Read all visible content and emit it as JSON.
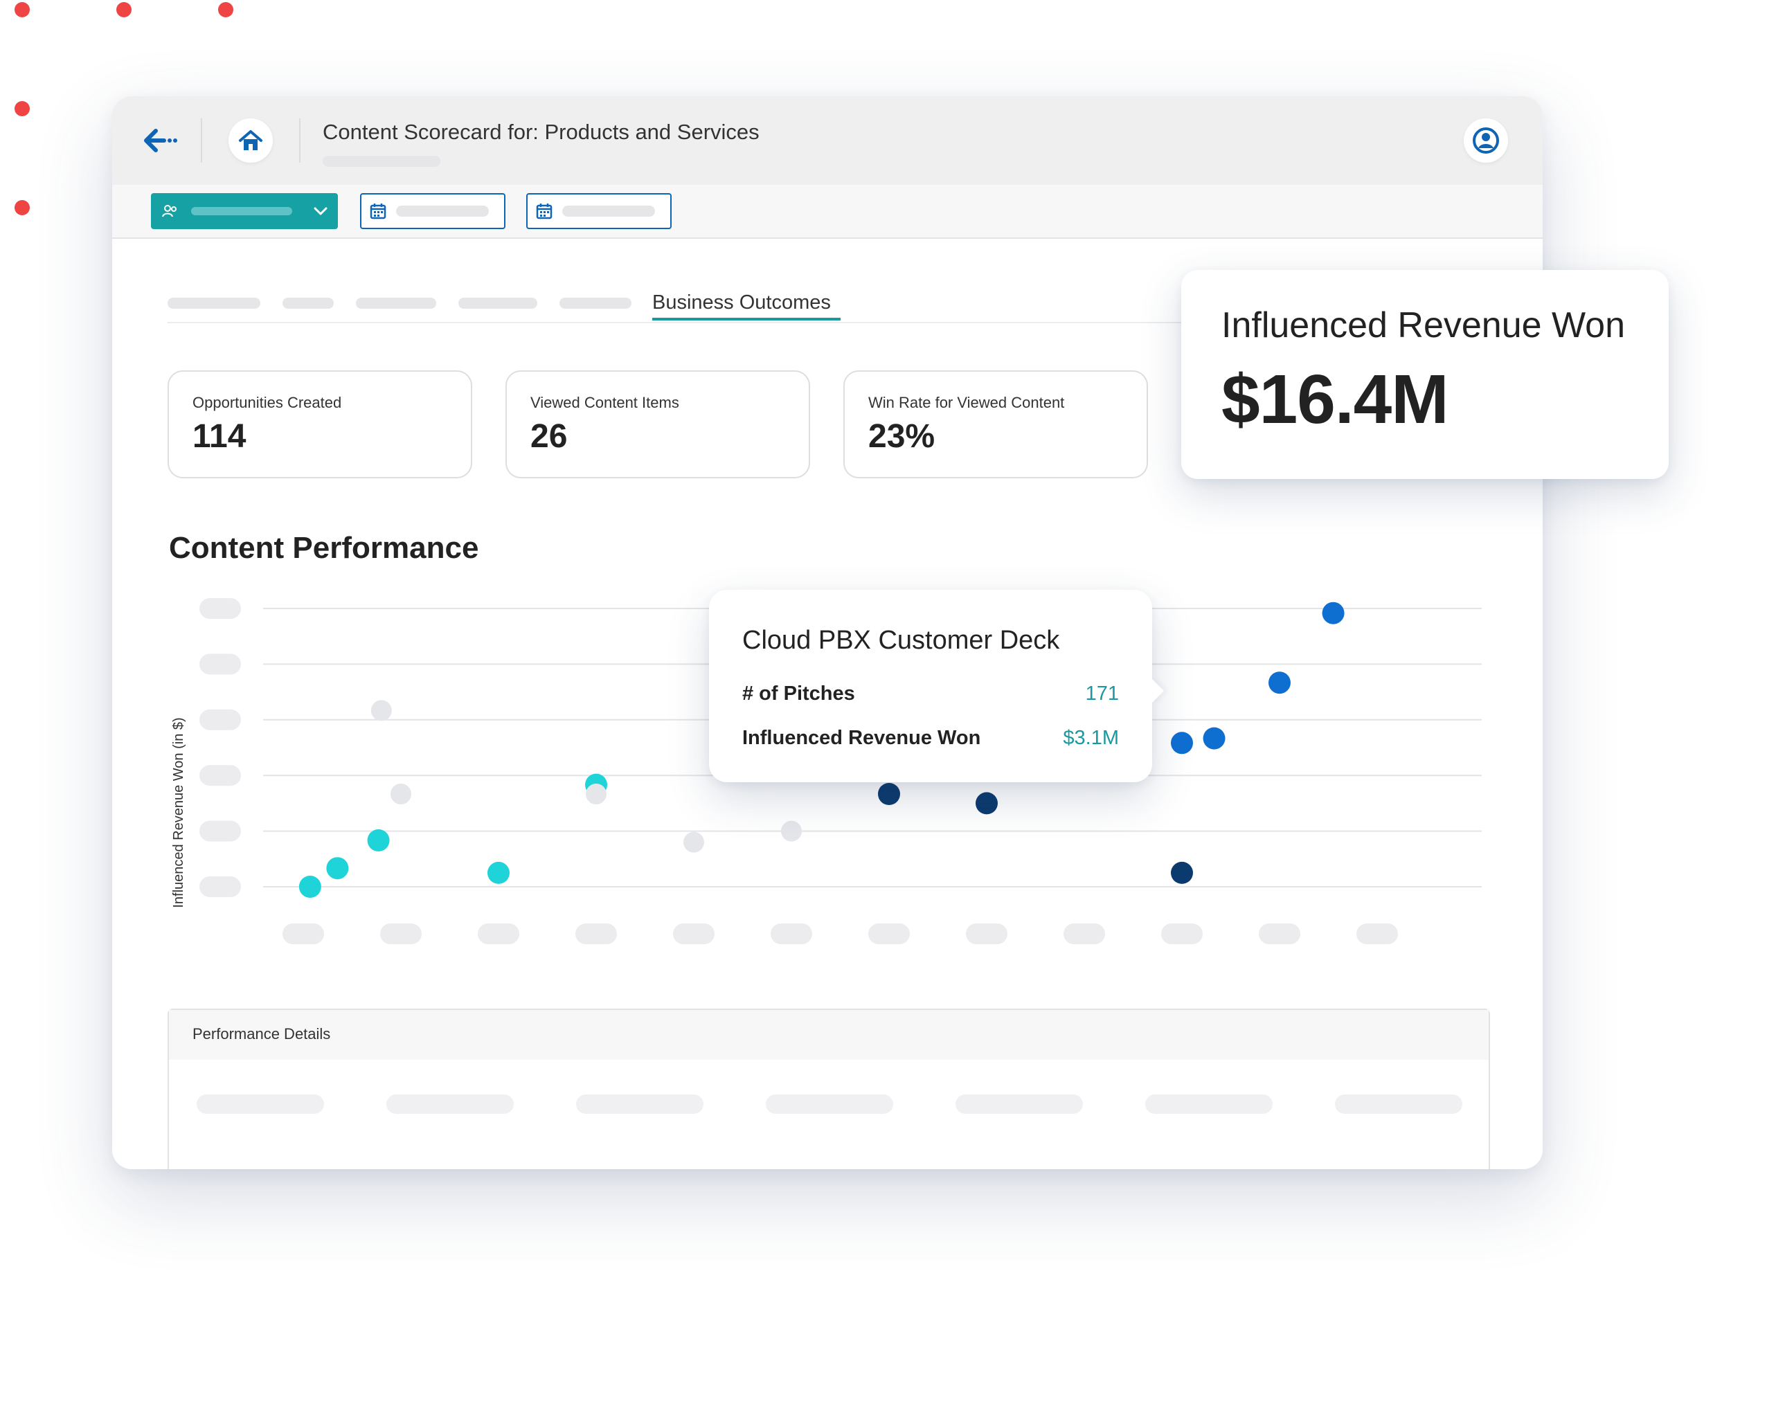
{
  "header": {
    "title": "Content Scorecard for: Products and Services",
    "back_icon": "arrow-left-icon",
    "home_icon": "home-icon",
    "user_icon": "user-icon"
  },
  "tabs": {
    "active_label": "Business Outcomes"
  },
  "kpis": [
    {
      "label": "Opportunities Created",
      "value": "114"
    },
    {
      "label": "Viewed Content Items",
      "value": "26"
    },
    {
      "label": "Win Rate for Viewed Content",
      "value": "23%"
    }
  ],
  "highlight_card": {
    "title": "Influenced Revenue Won",
    "value": "$16.4M"
  },
  "section": {
    "title": "Content Performance"
  },
  "tooltip": {
    "title": "Cloud PBX Customer Deck",
    "rows": [
      {
        "label": "# of Pitches",
        "value": "171"
      },
      {
        "label": "Influenced Revenue Won",
        "value": "$3.1M"
      }
    ]
  },
  "details": {
    "title": "Performance Details"
  },
  "colors": {
    "teal": "#1fd4d8",
    "blue": "#0f6fd1",
    "navy": "#0b3a6e",
    "muted": "#e4e6ea",
    "accent": "#16a1a4"
  },
  "chart_data": {
    "type": "scatter",
    "ylabel": "Influenced Revenue Won (in $)",
    "xlabel": "",
    "x_ticks": 12,
    "y_ticks": 6,
    "series": [
      {
        "group": "teal",
        "points": [
          [
            0.07,
            0.0
          ],
          [
            0.35,
            0.2
          ],
          [
            0.77,
            0.5
          ],
          [
            2.0,
            0.15
          ],
          [
            3.0,
            1.1
          ]
        ]
      },
      {
        "group": "muted",
        "points": [
          [
            0.8,
            1.9
          ],
          [
            1.0,
            1.0
          ],
          [
            3.0,
            1.0
          ],
          [
            4.0,
            0.48
          ],
          [
            5.0,
            0.6
          ]
        ]
      },
      {
        "group": "navy",
        "points": [
          [
            6.0,
            1.0
          ],
          [
            7.0,
            0.9
          ],
          [
            9.0,
            0.15
          ]
        ]
      },
      {
        "group": "blue",
        "points": [
          [
            9.0,
            1.55
          ],
          [
            9.33,
            1.6
          ],
          [
            10.0,
            2.2
          ],
          [
            10.55,
            2.95
          ]
        ]
      }
    ]
  }
}
